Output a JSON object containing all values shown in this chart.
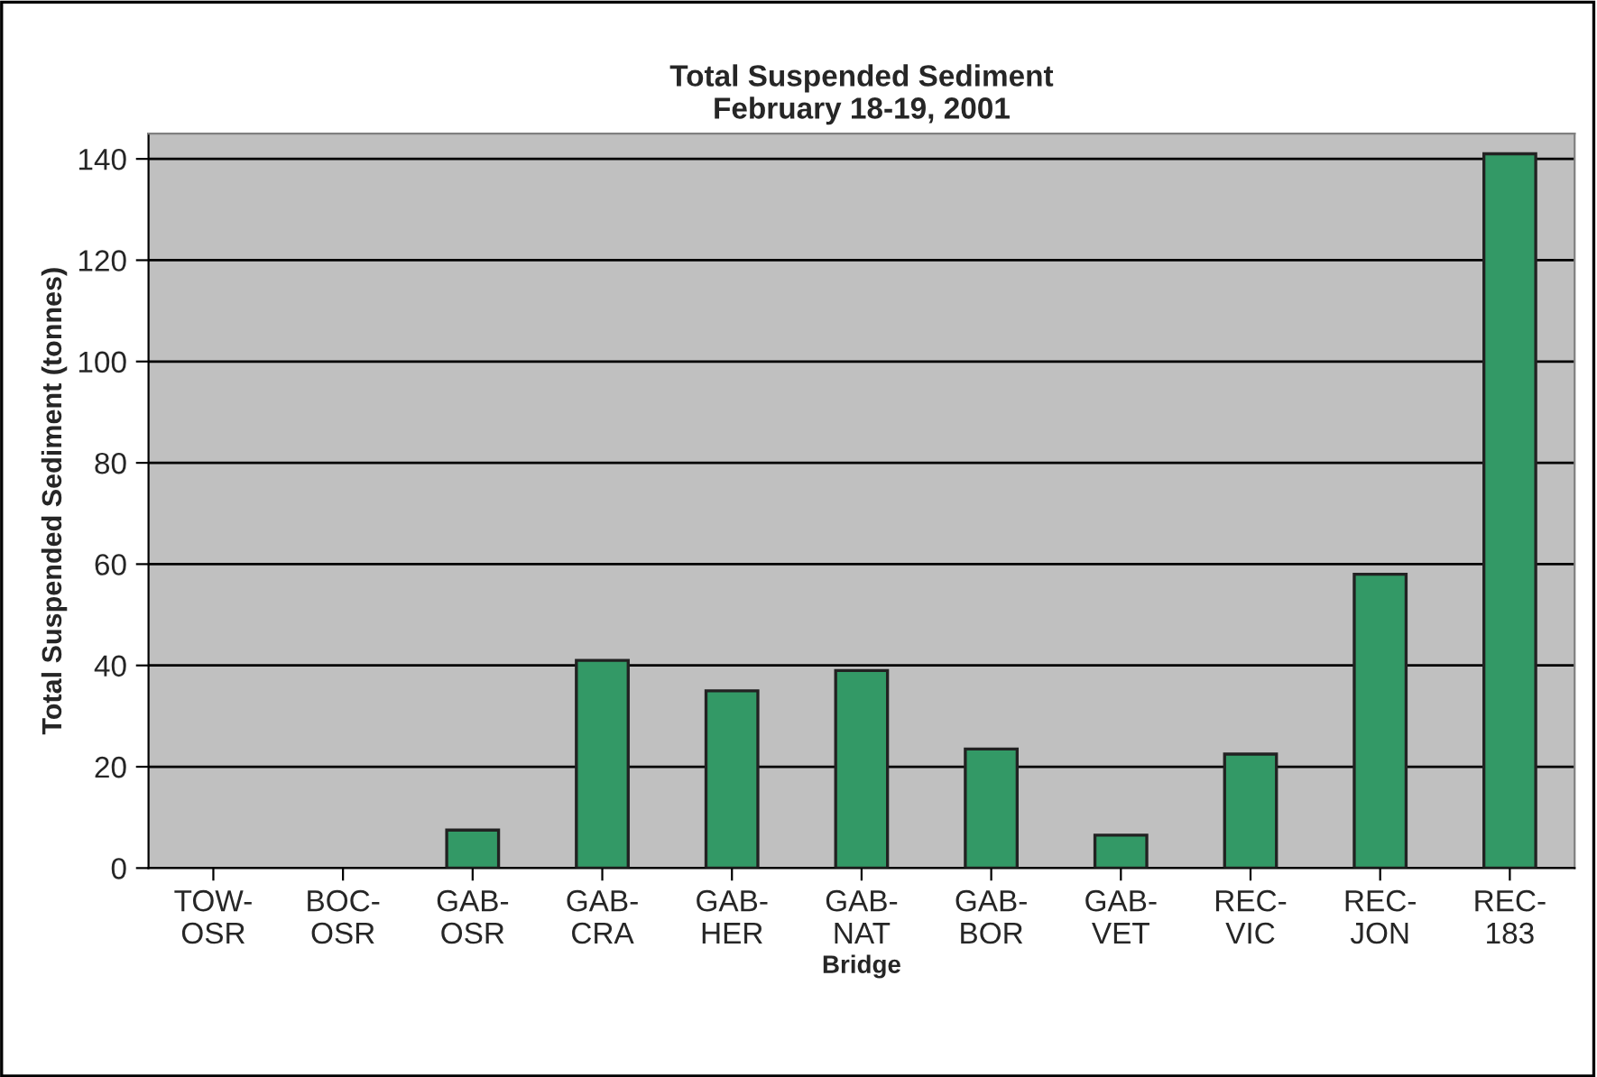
{
  "chart_data": {
    "type": "bar",
    "title": "Total Suspended Sediment\nFebruary 18-19, 2001",
    "xlabel": "Bridge",
    "ylabel": "Total Suspended Sediment (tonnes)",
    "categories": [
      "TOW-\nOSR",
      "BOC-\nOSR",
      "GAB-\nOSR",
      "GAB-\nCRA",
      "GAB-\nHER",
      "GAB-\nNAT",
      "GAB-\nBOR",
      "GAB-\nVET",
      "REC-\nVIC",
      "REC-\nJON",
      "REC-\n183"
    ],
    "values": [
      0,
      0,
      7.5,
      41,
      35,
      39,
      23.5,
      6.5,
      22.5,
      58,
      141
    ],
    "color": "#339966",
    "ylim": [
      0,
      145
    ],
    "yticks": [
      0,
      20,
      40,
      60,
      80,
      100,
      120,
      140
    ],
    "grid": "y",
    "legend": false
  }
}
